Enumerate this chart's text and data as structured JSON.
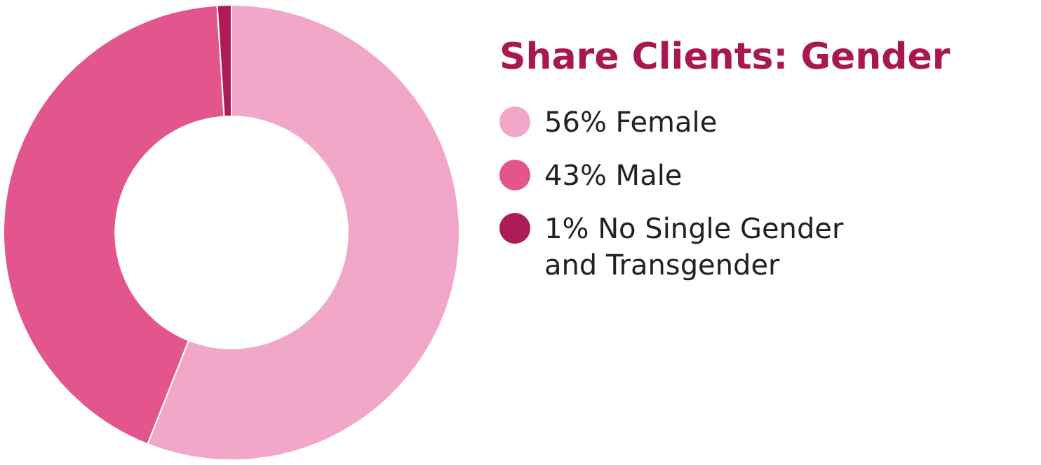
{
  "chart_data": {
    "type": "donut",
    "title": "Share Clients: Gender",
    "categories": [
      "56% Female",
      "43% Male",
      "1% No Single Gender and Transgender"
    ],
    "values": [
      56,
      43,
      1
    ],
    "colors": [
      "#f2a6c8",
      "#e2558d",
      "#ae1c58"
    ],
    "legend": "right"
  }
}
